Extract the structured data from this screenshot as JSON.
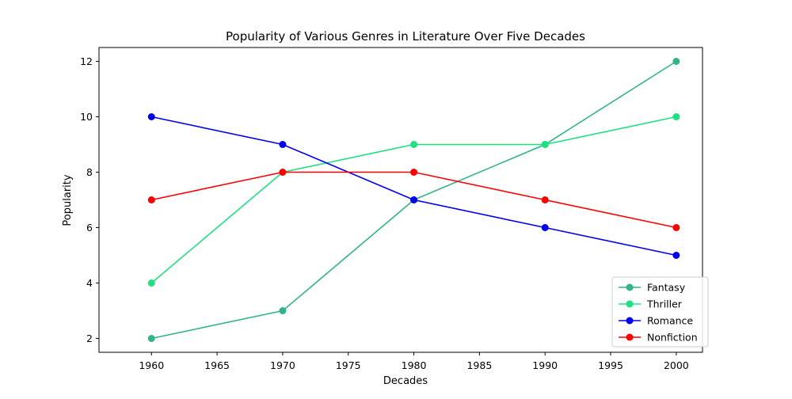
{
  "chart_data": {
    "type": "line",
    "title": "Popularity of Various Genres in Literature Over Five Decades",
    "xlabel": "Decades",
    "ylabel": "Popularity",
    "x": [
      1960,
      1970,
      1980,
      1990,
      2000
    ],
    "xlim": [
      1956,
      2002
    ],
    "ylim": [
      1.5,
      12.5
    ],
    "xticks": [
      1960,
      1965,
      1970,
      1975,
      1980,
      1985,
      1990,
      1995,
      2000
    ],
    "yticks": [
      2,
      4,
      6,
      8,
      10,
      12
    ],
    "grid": false,
    "legend_position": "bottom-right",
    "series": [
      {
        "name": "Fantasy",
        "color": "#32b38a",
        "values": [
          2,
          3,
          7,
          9,
          12
        ]
      },
      {
        "name": "Thriller",
        "color": "#1de07f",
        "values": [
          4,
          8,
          9,
          9,
          10
        ]
      },
      {
        "name": "Romance",
        "color": "#0000ee",
        "values": [
          10,
          9,
          7,
          6,
          5
        ]
      },
      {
        "name": "Nonfiction",
        "color": "#ff0000",
        "values": [
          7,
          8,
          8,
          7,
          6
        ]
      }
    ]
  }
}
